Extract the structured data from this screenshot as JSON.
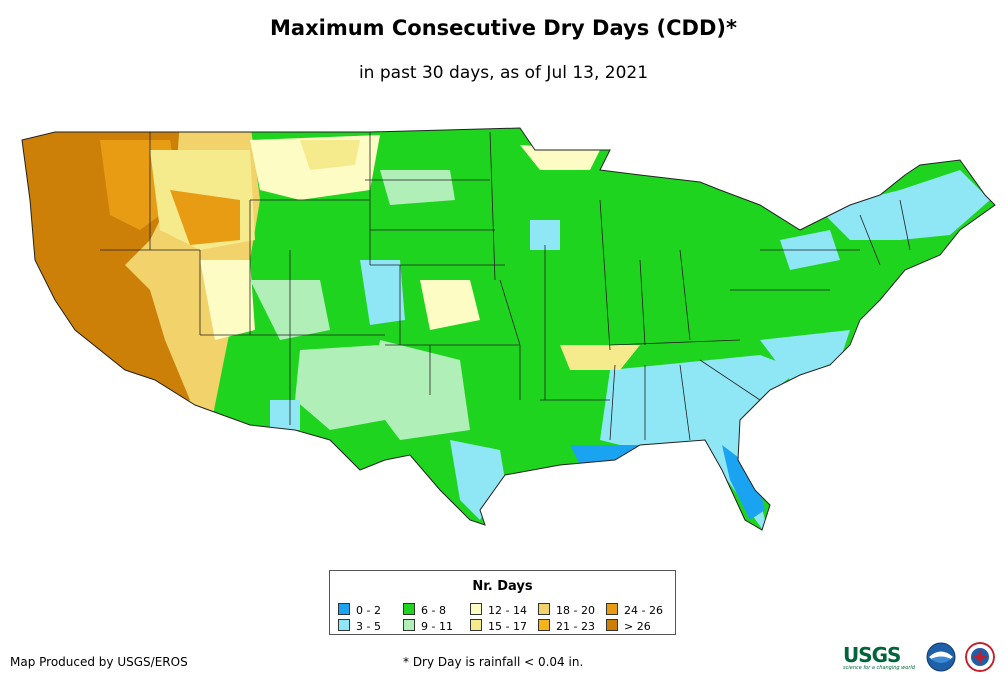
{
  "title": "Maximum Consecutive Dry Days (CDD)*",
  "subtitle": "in past 30 days, as of Jul 13, 2021",
  "legend": {
    "title": "Nr. Days",
    "items": [
      {
        "label": "0 - 2",
        "color": "#1aa3f0"
      },
      {
        "label": "3 - 5",
        "color": "#8fe6f5"
      },
      {
        "label": "6 - 8",
        "color": "#1fd41f"
      },
      {
        "label": "9 - 11",
        "color": "#b0f0b8"
      },
      {
        "label": "12 - 14",
        "color": "#fdfcc4"
      },
      {
        "label": "15 - 17",
        "color": "#f5ea8c"
      },
      {
        "label": "18 - 20",
        "color": "#f2d26a"
      },
      {
        "label": "21 - 23",
        "color": "#f5b41a"
      },
      {
        "label": "24 - 26",
        "color": "#e89c14"
      },
      {
        "label": "> 26",
        "color": "#cc8008"
      }
    ]
  },
  "footer": {
    "producer": "Map Produced by USGS/EROS",
    "footnote": "* Dry Day is rainfall < 0.04 in."
  },
  "logos": {
    "usgs": "USGS",
    "usgs_tagline": "science for a changing world",
    "noaa_icon": "noaa-seal-icon",
    "nws_icon": "nws-seal-icon"
  }
}
